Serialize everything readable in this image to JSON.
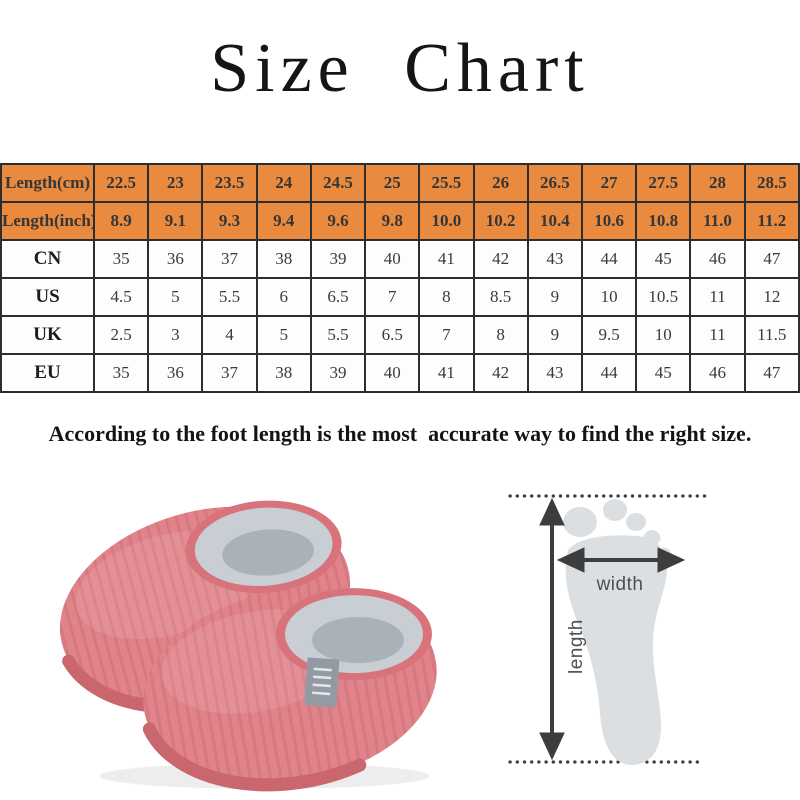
{
  "title": "Size Chart",
  "note": "According to the foot length is the most  accurate way to find the right size.",
  "chart_data": {
    "type": "table",
    "title": "Size Chart",
    "row_headers": [
      "Length(cm)",
      "Length(inch)",
      "CN",
      "US",
      "UK",
      "EU"
    ],
    "rows": [
      {
        "label": "Length(cm)",
        "highlight": true,
        "values": [
          "22.5",
          "23",
          "23.5",
          "24",
          "24.5",
          "25",
          "25.5",
          "26",
          "26.5",
          "27",
          "27.5",
          "28",
          "28.5"
        ]
      },
      {
        "label": "Length(inch)",
        "highlight": true,
        "values": [
          "8.9",
          "9.1",
          "9.3",
          "9.4",
          "9.6",
          "9.8",
          "10.0",
          "10.2",
          "10.4",
          "10.6",
          "10.8",
          "11.0",
          "11.2"
        ]
      },
      {
        "label": "CN",
        "highlight": false,
        "values": [
          "35",
          "36",
          "37",
          "38",
          "39",
          "40",
          "41",
          "42",
          "43",
          "44",
          "45",
          "46",
          "47"
        ]
      },
      {
        "label": "US",
        "highlight": false,
        "values": [
          "4.5",
          "5",
          "5.5",
          "6",
          "6.5",
          "7",
          "8",
          "8.5",
          "9",
          "10",
          "10.5",
          "11",
          "12"
        ]
      },
      {
        "label": "UK",
        "highlight": false,
        "values": [
          "2.5",
          "3",
          "4",
          "5",
          "5.5",
          "6.5",
          "7",
          "8",
          "9",
          "9.5",
          "10",
          "11",
          "11.5"
        ]
      },
      {
        "label": "EU",
        "highlight": false,
        "values": [
          "35",
          "36",
          "37",
          "38",
          "39",
          "40",
          "41",
          "42",
          "43",
          "44",
          "45",
          "46",
          "47"
        ]
      }
    ]
  },
  "diagram": {
    "width_label": "width",
    "length_label": "length"
  },
  "images": {
    "slippers": "pink-plush-home-slippers-photo",
    "foot": "foot-outline-measurement-diagram"
  },
  "colors": {
    "header_bg": "#e98a3f",
    "table_border": "#2d2d2d",
    "table_text": "#3a3a3a",
    "slipper_pink": "#e0838a",
    "slipper_pink_dark": "#c9666e",
    "slipper_rim": "#d8727b",
    "fur_light": "#c9ced4",
    "fur_dark": "#a9b1b9",
    "tag_gray": "#929ba3",
    "foot_gray": "#dcdfe1",
    "arrow_dark": "#3d3d3d",
    "label_gray": "#4f4f4f"
  }
}
